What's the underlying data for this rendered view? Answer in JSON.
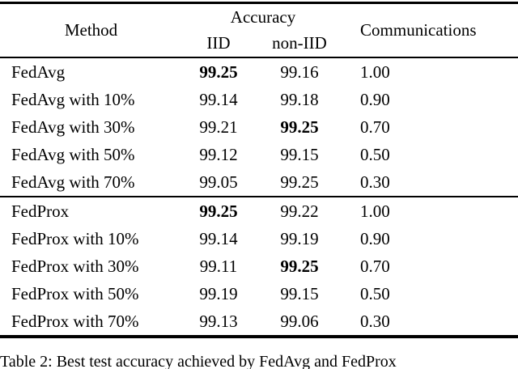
{
  "table": {
    "header": {
      "method": "Method",
      "accuracy_group": "Accuracy",
      "iid": "IID",
      "non_iid": "non-IID",
      "communications": "Communications"
    },
    "rows": [
      {
        "method": "FedAvg",
        "iid": "99.25",
        "iid_bold": true,
        "non_iid": "99.16",
        "non_iid_bold": false,
        "communications": "1.00"
      },
      {
        "method": "FedAvg with 10%",
        "iid": "99.14",
        "iid_bold": false,
        "non_iid": "99.18",
        "non_iid_bold": false,
        "communications": "0.90"
      },
      {
        "method": "FedAvg with 30%",
        "iid": "99.21",
        "iid_bold": false,
        "non_iid": "99.25",
        "non_iid_bold": true,
        "communications": "0.70"
      },
      {
        "method": "FedAvg with 50%",
        "iid": "99.12",
        "iid_bold": false,
        "non_iid": "99.15",
        "non_iid_bold": false,
        "communications": "0.50"
      },
      {
        "method": "FedAvg with 70%",
        "iid": "99.05",
        "iid_bold": false,
        "non_iid": "99.25",
        "non_iid_bold": false,
        "communications": "0.30"
      },
      {
        "method": "FedProx",
        "iid": "99.25",
        "iid_bold": true,
        "non_iid": "99.22",
        "non_iid_bold": false,
        "communications": "1.00"
      },
      {
        "method": "FedProx with 10%",
        "iid": "99.14",
        "iid_bold": false,
        "non_iid": "99.19",
        "non_iid_bold": false,
        "communications": "0.90"
      },
      {
        "method": "FedProx with 30%",
        "iid": "99.11",
        "iid_bold": false,
        "non_iid": "99.25",
        "non_iid_bold": true,
        "communications": "0.70"
      },
      {
        "method": "FedProx with 50%",
        "iid": "99.19",
        "iid_bold": false,
        "non_iid": "99.15",
        "non_iid_bold": false,
        "communications": "0.50"
      },
      {
        "method": "FedProx with 70%",
        "iid": "99.13",
        "iid_bold": false,
        "non_iid": "99.06",
        "non_iid_bold": false,
        "communications": "0.30"
      }
    ]
  },
  "caption": "Table 2: Best test accuracy achieved by FedAvg and FedProx",
  "colors": {
    "text": "#000000",
    "rule": "#000000",
    "background": "#ffffff"
  }
}
